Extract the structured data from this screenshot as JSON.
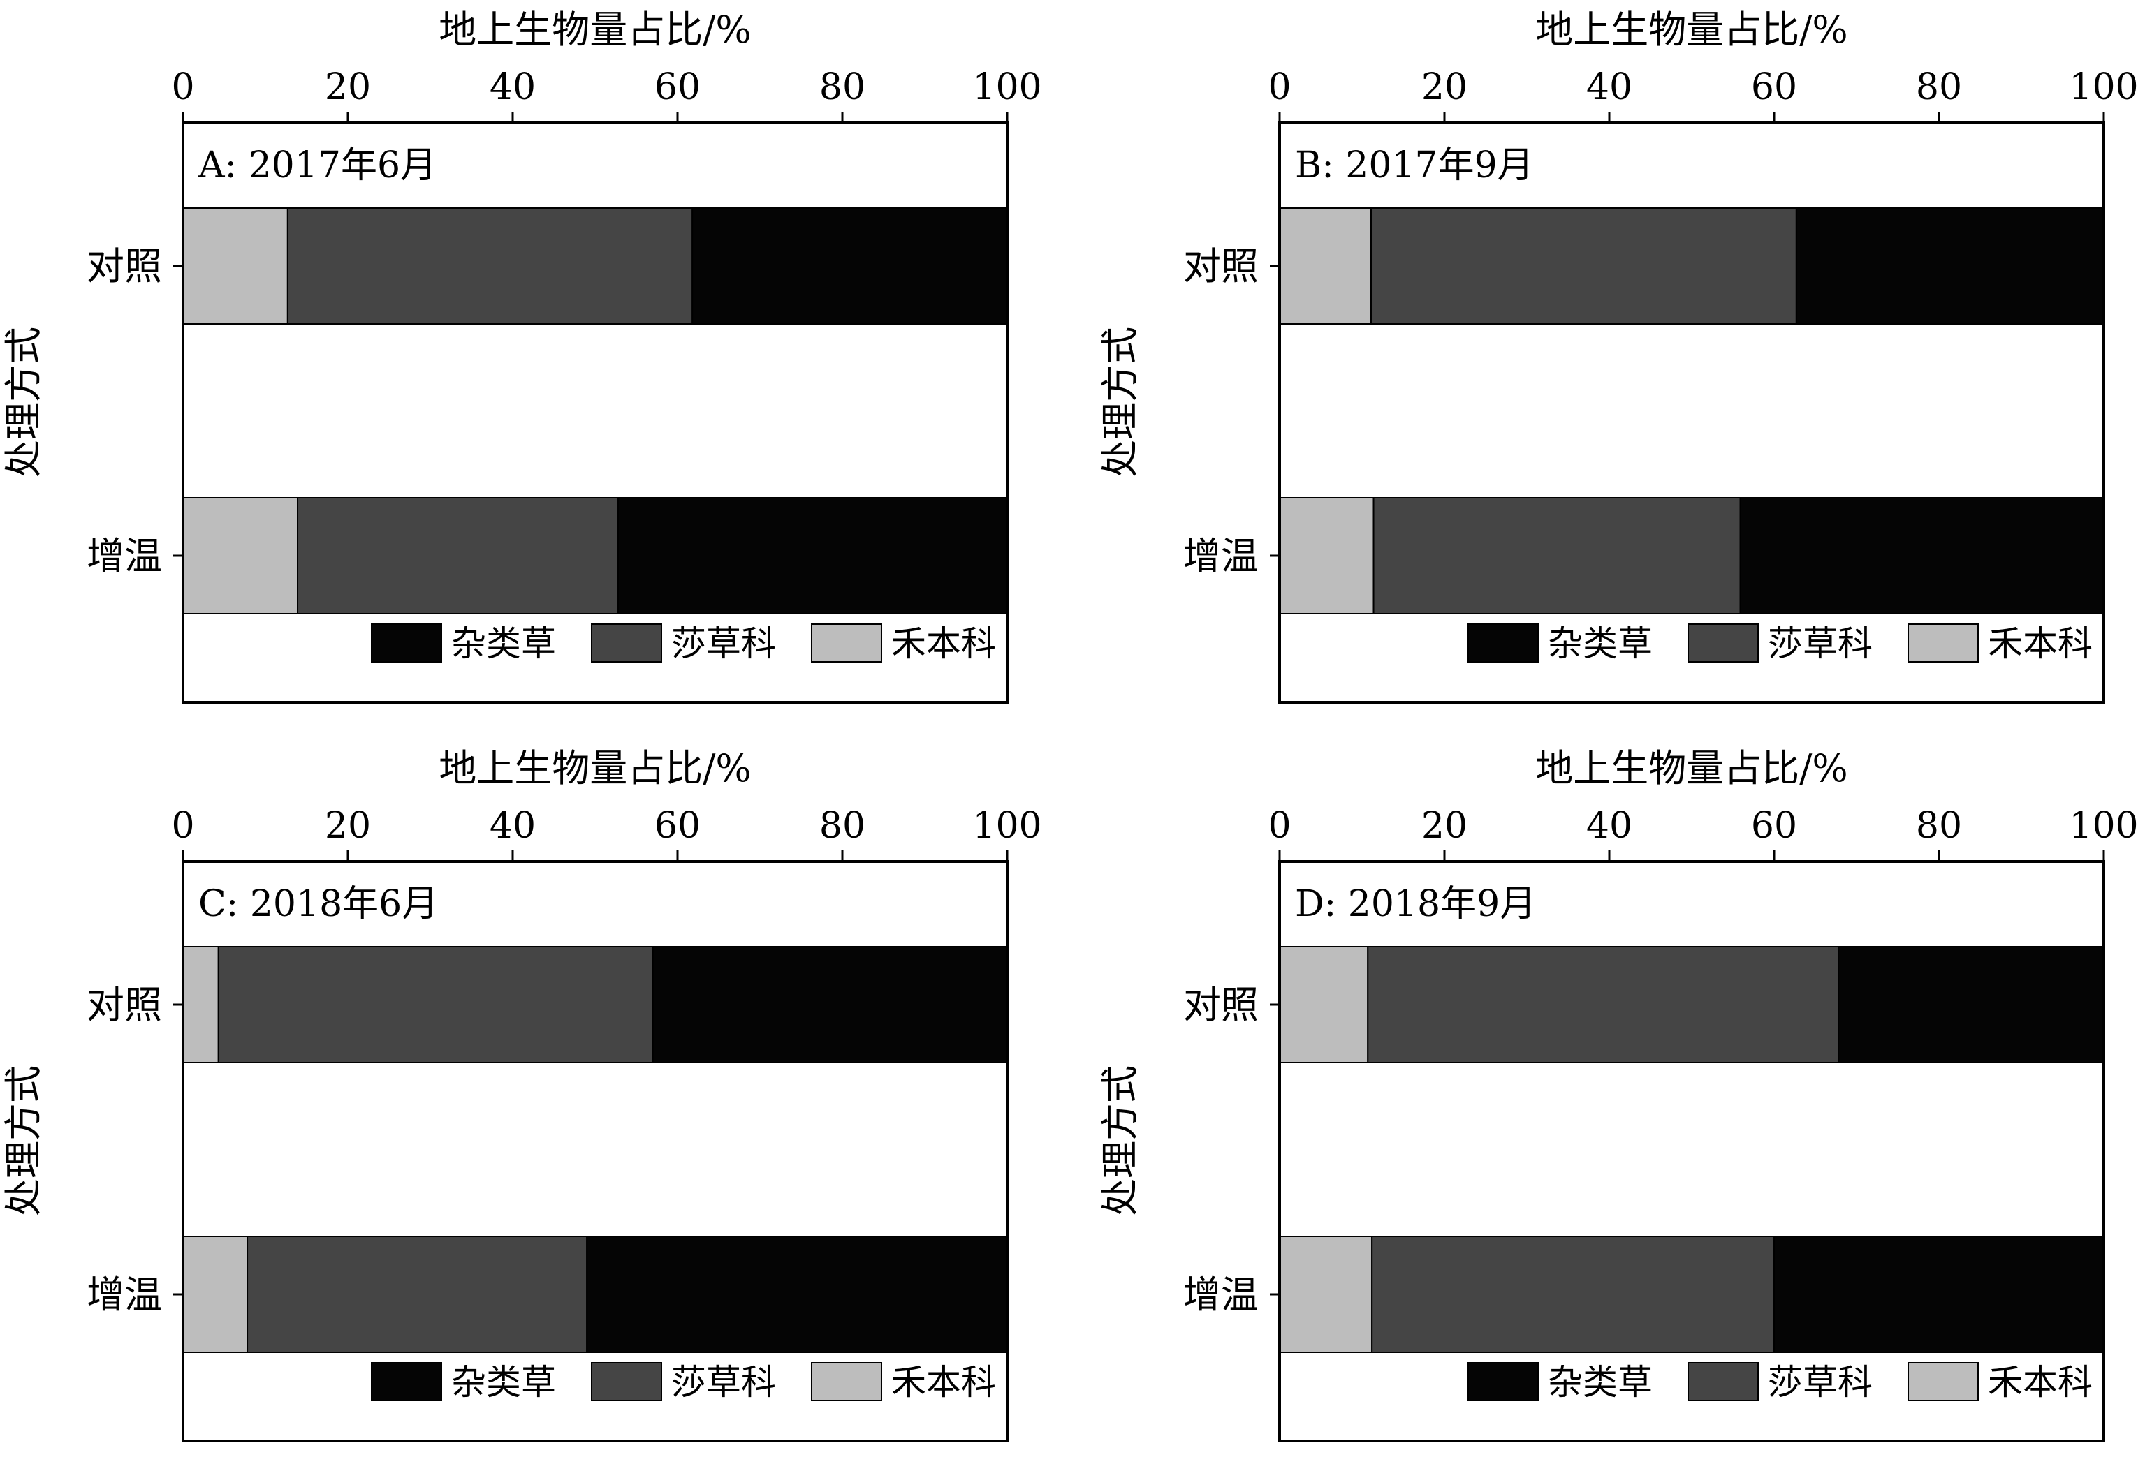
{
  "figure": {
    "colors": {
      "杂类草": "#050505",
      "莎草科": "#454545",
      "禾本科": "#bdbdbd",
      "frame": "#000000",
      "background": "#ffffff"
    }
  },
  "chart_data": [
    {
      "type": "bar",
      "stacked": true,
      "orientation": "horizontal",
      "panel_label": "A: 2017年6月",
      "xlabel": "地上生物量占比/%",
      "ylabel": "处理方式",
      "xlim": [
        0,
        100
      ],
      "xticks": [
        0,
        20,
        40,
        60,
        80,
        100
      ],
      "x_axis_position": "top",
      "grid": false,
      "legend_position": "bottom",
      "categories": [
        "对照",
        "增温"
      ],
      "series": [
        {
          "name": "禾本科",
          "values": [
            12.7,
            13.9
          ]
        },
        {
          "name": "莎草科",
          "values": [
            49.1,
            38.9
          ]
        },
        {
          "name": "杂类草",
          "values": [
            38.2,
            47.2
          ]
        }
      ],
      "legend": [
        "杂类草",
        "莎草科",
        "禾本科"
      ]
    },
    {
      "type": "bar",
      "stacked": true,
      "orientation": "horizontal",
      "panel_label": "B: 2017年9月",
      "xlabel": "地上生物量占比/%",
      "ylabel": "处理方式",
      "xlim": [
        0,
        100
      ],
      "xticks": [
        0,
        20,
        40,
        60,
        80,
        100
      ],
      "x_axis_position": "top",
      "grid": false,
      "legend_position": "bottom",
      "categories": [
        "对照",
        "增温"
      ],
      "series": [
        {
          "name": "禾本科",
          "values": [
            11.1,
            11.4
          ]
        },
        {
          "name": "莎草科",
          "values": [
            51.6,
            44.5
          ]
        },
        {
          "name": "杂类草",
          "values": [
            37.3,
            44.1
          ]
        }
      ],
      "legend": [
        "杂类草",
        "莎草科",
        "禾本科"
      ]
    },
    {
      "type": "bar",
      "stacked": true,
      "orientation": "horizontal",
      "panel_label": "C: 2018年6月",
      "xlabel": "地上生物量占比/%",
      "ylabel": "处理方式",
      "xlim": [
        0,
        100
      ],
      "xticks": [
        0,
        20,
        40,
        60,
        80,
        100
      ],
      "x_axis_position": "top",
      "grid": false,
      "legend_position": "bottom",
      "categories": [
        "对照",
        "增温"
      ],
      "series": [
        {
          "name": "禾本科",
          "values": [
            4.3,
            7.8
          ]
        },
        {
          "name": "莎草科",
          "values": [
            52.7,
            41.2
          ]
        },
        {
          "name": "杂类草",
          "values": [
            43.0,
            51.0
          ]
        }
      ],
      "legend": [
        "杂类草",
        "莎草科",
        "禾本科"
      ]
    },
    {
      "type": "bar",
      "stacked": true,
      "orientation": "horizontal",
      "panel_label": "D: 2018年9月",
      "xlabel": "地上生物量占比/%",
      "ylabel": "处理方式",
      "xlim": [
        0,
        100
      ],
      "xticks": [
        0,
        20,
        40,
        60,
        80,
        100
      ],
      "x_axis_position": "top",
      "grid": false,
      "legend_position": "bottom",
      "categories": [
        "对照",
        "增温"
      ],
      "series": [
        {
          "name": "禾本科",
          "values": [
            10.7,
            11.2
          ]
        },
        {
          "name": "莎草科",
          "values": [
            57.1,
            48.8
          ]
        },
        {
          "name": "杂类草",
          "values": [
            32.2,
            40.0
          ]
        }
      ],
      "legend": [
        "杂类草",
        "莎草科",
        "禾本科"
      ]
    }
  ]
}
